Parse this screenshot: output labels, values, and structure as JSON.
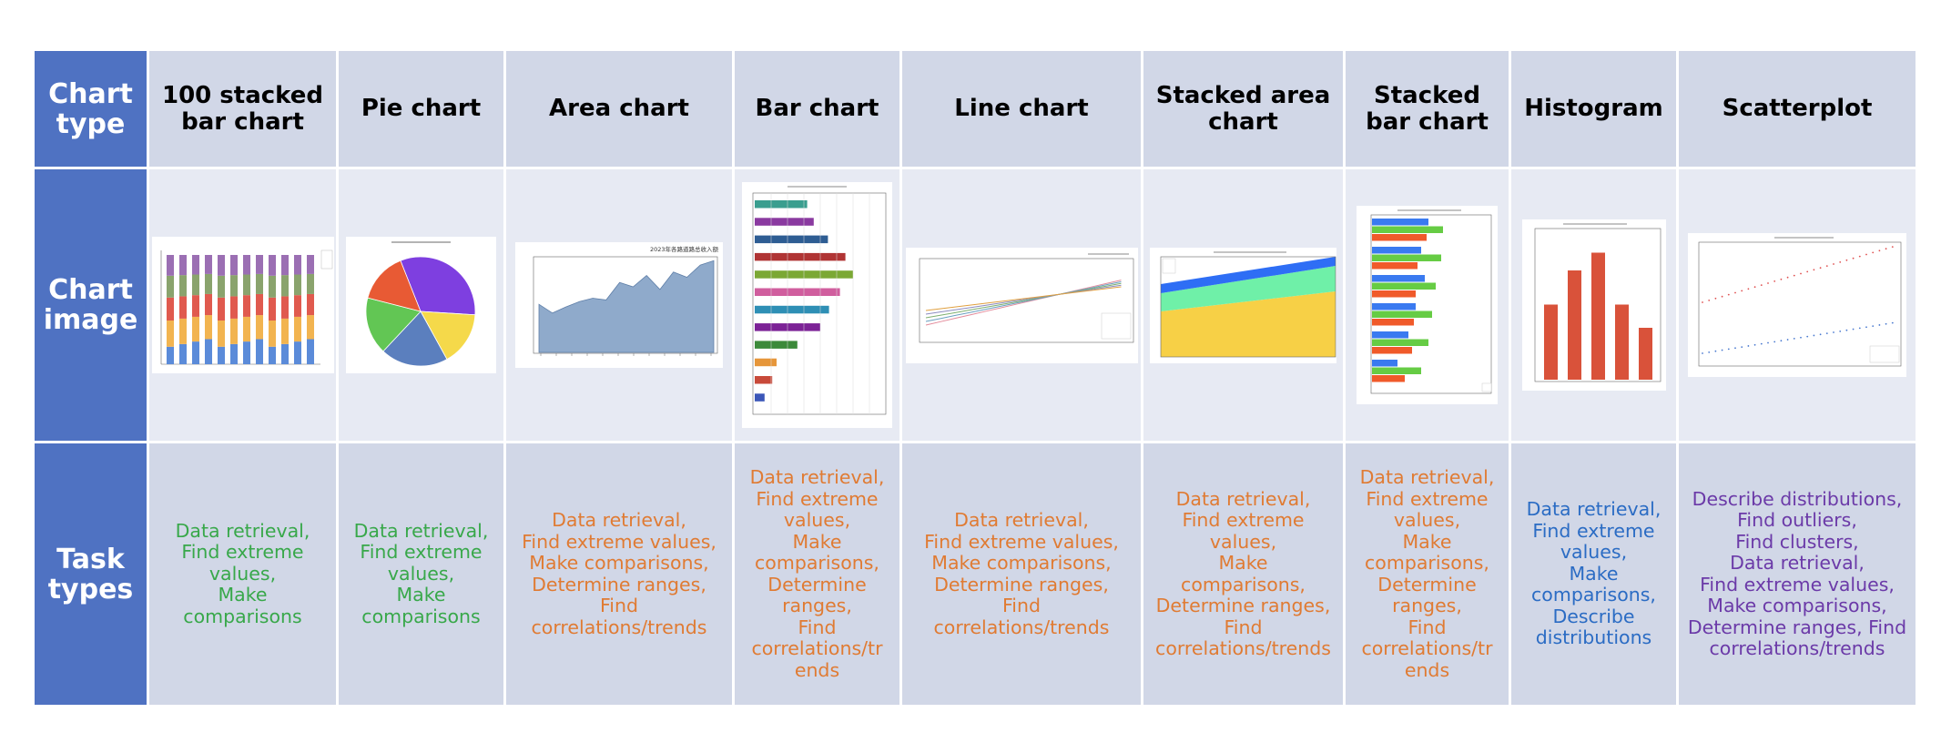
{
  "row_labels": {
    "chart_type": "Chart\ntype",
    "chart_image": "Chart\nimage",
    "task_types": "Task\ntypes"
  },
  "columns": [
    {
      "name": "100 stacked\nbar chart",
      "tasks": "Data retrieval,\nFind extreme\nvalues,\nMake\ncomparisons",
      "color": "#38a84a"
    },
    {
      "name": "Pie chart",
      "tasks": "Data retrieval,\nFind extreme\nvalues,\nMake\ncomparisons",
      "color": "#38a84a"
    },
    {
      "name": "Area chart",
      "tasks": "Data retrieval,\nFind extreme values,\nMake comparisons,\nDetermine ranges,\nFind\ncorrelations/trends",
      "color": "#e07b33"
    },
    {
      "name": "Bar chart",
      "tasks": "Data retrieval,\nFind extreme\nvalues,\nMake\ncomparisons,\nDetermine\nranges,\nFind\ncorrelations/tr\nends",
      "color": "#e07b33"
    },
    {
      "name": "Line chart",
      "tasks": "Data retrieval,\nFind extreme values,\nMake comparisons,\nDetermine ranges,\nFind\ncorrelations/trends",
      "color": "#e07b33"
    },
    {
      "name": "Stacked area\nchart",
      "tasks": "Data retrieval,\nFind extreme\nvalues,\nMake\ncomparisons,\nDetermine ranges,\nFind\ncorrelations/trends",
      "color": "#e07b33"
    },
    {
      "name": "Stacked\nbar chart",
      "tasks": "Data retrieval,\nFind extreme\nvalues,\nMake\ncomparisons,\nDetermine\nranges,\nFind\ncorrelations/tr\nends",
      "color": "#e07b33"
    },
    {
      "name": "Histogram",
      "tasks": "Data retrieval,\nFind extreme\nvalues,\nMake\ncomparisons,\nDescribe\ndistributions",
      "color": "#2b6cc4"
    },
    {
      "name": "Scatterplot",
      "tasks": "Describe distributions,\nFind outliers,\nFind clusters,\nData retrieval,\nFind extreme values,\nMake comparisons,\nDetermine ranges, Find\ncorrelations/trends",
      "color": "#6b3aa8"
    }
  ],
  "thumbnail_text": {
    "area_title": "2023年各路道路总收入额"
  }
}
